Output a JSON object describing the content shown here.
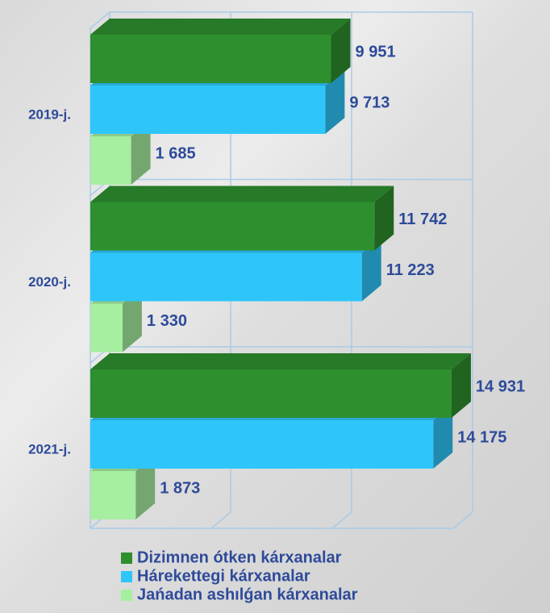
{
  "chart_data": {
    "type": "bar3d",
    "categories": [
      "2019-j.",
      "2020-j.",
      "2021-j."
    ],
    "series": [
      {
        "name": "Dizimnen ótken kárxanalar",
        "color": "#2e8f2e",
        "values": [
          9951,
          11742,
          14931
        ],
        "value_labels": [
          "9 951",
          "11 742",
          "14 931"
        ]
      },
      {
        "name": "Hárekettegi kárxanalar",
        "color": "#2ec6fa",
        "values": [
          9713,
          11223,
          14175
        ],
        "value_labels": [
          "9 713",
          "11 223",
          "14 175"
        ]
      },
      {
        "name": "Jańadan ashılǵan kárxanalar",
        "color": "#a6eea0",
        "values": [
          1685,
          1330,
          1873
        ],
        "value_labels": [
          "1 685",
          "1 330",
          "1 873"
        ]
      }
    ],
    "xlim": [
      0,
      15000
    ],
    "xticks": [
      0,
      5000,
      10000,
      15000
    ],
    "grid": true,
    "legend": "bottom"
  }
}
